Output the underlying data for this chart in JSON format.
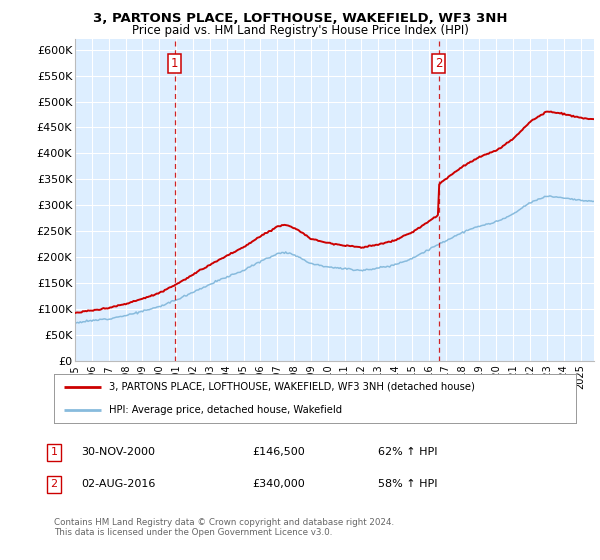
{
  "title1": "3, PARTONS PLACE, LOFTHOUSE, WAKEFIELD, WF3 3NH",
  "title2": "Price paid vs. HM Land Registry's House Price Index (HPI)",
  "ylabel_ticks": [
    "£0",
    "£50K",
    "£100K",
    "£150K",
    "£200K",
    "£250K",
    "£300K",
    "£350K",
    "£400K",
    "£450K",
    "£500K",
    "£550K",
    "£600K"
  ],
  "ytick_vals": [
    0,
    50000,
    100000,
    150000,
    200000,
    250000,
    300000,
    350000,
    400000,
    450000,
    500000,
    550000,
    600000
  ],
  "ylim": [
    0,
    620000
  ],
  "xlim_start": 1995.0,
  "xlim_end": 2025.8,
  "sale1_x": 2000.92,
  "sale1_y": 146500,
  "sale1_label": "1",
  "sale1_date": "30-NOV-2000",
  "sale1_price": "£146,500",
  "sale1_hpi": "62% ↑ HPI",
  "sale2_x": 2016.58,
  "sale2_y": 340000,
  "sale2_label": "2",
  "sale2_date": "02-AUG-2016",
  "sale2_price": "£340,000",
  "sale2_hpi": "58% ↑ HPI",
  "legend_line1": "3, PARTONS PLACE, LOFTHOUSE, WAKEFIELD, WF3 3NH (detached house)",
  "legend_line2": "HPI: Average price, detached house, Wakefield",
  "footer": "Contains HM Land Registry data © Crown copyright and database right 2024.\nThis data is licensed under the Open Government Licence v3.0.",
  "bg_color": "#ddeeff",
  "grid_color": "#ffffff",
  "sale_line_color": "#cc0000",
  "hpi_line_color": "#88bbdd",
  "marker_box_color": "#cc0000",
  "xtick_years": [
    1995,
    1996,
    1997,
    1998,
    1999,
    2000,
    2001,
    2002,
    2003,
    2004,
    2005,
    2006,
    2007,
    2008,
    2009,
    2010,
    2011,
    2012,
    2013,
    2014,
    2015,
    2016,
    2017,
    2018,
    2019,
    2020,
    2021,
    2022,
    2023,
    2024,
    2025
  ]
}
